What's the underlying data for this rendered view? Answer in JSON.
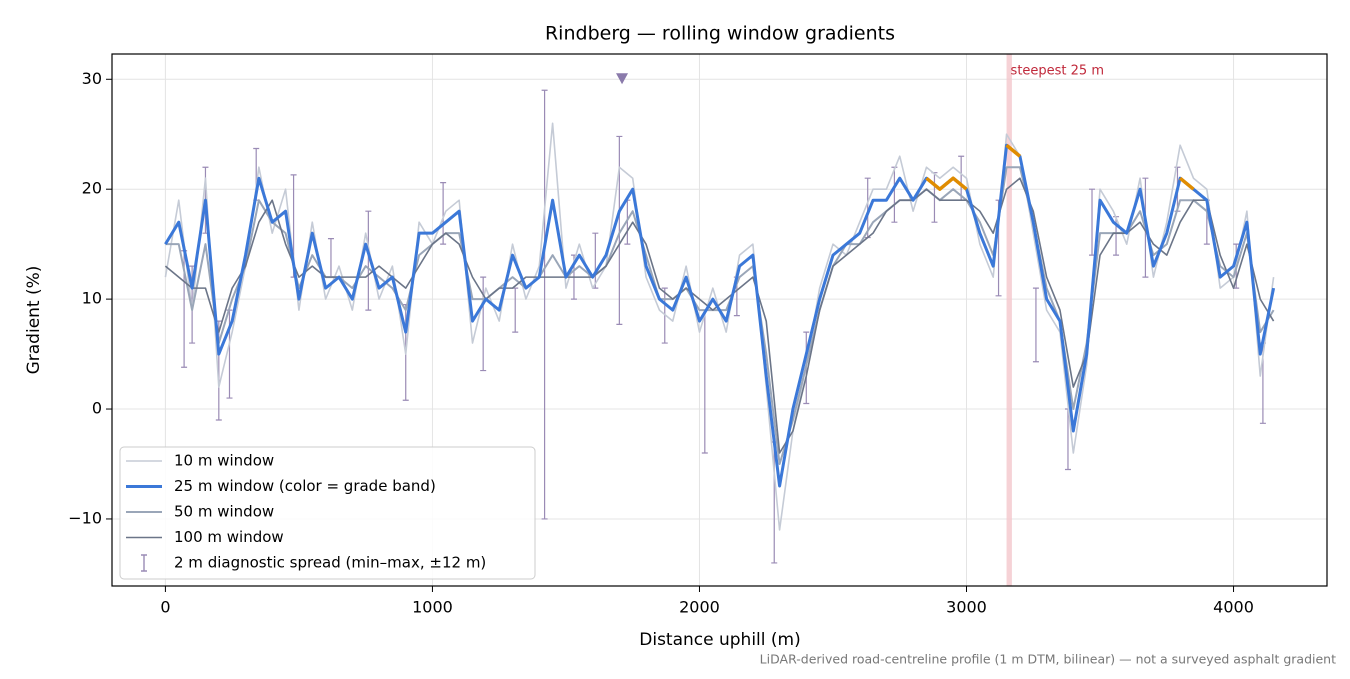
{
  "chart_data": {
    "type": "line",
    "title": "Rindberg — rolling window gradients",
    "x_label": "Distance uphill (m)",
    "y_label": "Gradient (%)",
    "footnote": "LiDAR-derived road-centreline profile (1 m DTM, bilinear) — not a surveyed asphalt gradient",
    "xlim": [
      -200,
      4350
    ],
    "ylim": [
      -16.1,
      32.3
    ],
    "xticks": [
      0,
      1000,
      2000,
      3000,
      4000
    ],
    "yticks": [
      {
        "value": -10,
        "label": "−10"
      },
      0,
      10,
      20,
      30
    ],
    "grid": true,
    "legend": "lower left",
    "x": [
      0,
      50,
      100,
      150,
      200,
      250,
      300,
      350,
      400,
      450,
      500,
      550,
      600,
      650,
      700,
      750,
      800,
      850,
      900,
      950,
      1000,
      1050,
      1100,
      1150,
      1200,
      1250,
      1300,
      1350,
      1400,
      1450,
      1500,
      1550,
      1600,
      1650,
      1700,
      1750,
      1800,
      1850,
      1900,
      1950,
      2000,
      2050,
      2100,
      2150,
      2200,
      2250,
      2300,
      2350,
      2400,
      2450,
      2500,
      2550,
      2600,
      2650,
      2700,
      2750,
      2800,
      2850,
      2900,
      2950,
      3000,
      3050,
      3100,
      3150,
      3200,
      3250,
      3300,
      3350,
      3400,
      3450,
      3500,
      3550,
      3600,
      3650,
      3700,
      3750,
      3800,
      3850,
      3900,
      3950,
      4000,
      4050,
      4100,
      4150
    ],
    "series": [
      {
        "name": "10 m window",
        "color": "#c5cbd6",
        "width": 1.6,
        "values": [
          12,
          19,
          9,
          21,
          2,
          7,
          13,
          22,
          16,
          20,
          9,
          17,
          10,
          13,
          9,
          16,
          10,
          13,
          5,
          17,
          15,
          18,
          19,
          6,
          11,
          8,
          15,
          10,
          13,
          26,
          11,
          15,
          11,
          13,
          22,
          21,
          12,
          9,
          8,
          13,
          7,
          11,
          7,
          14,
          15,
          2,
          -11,
          -2,
          4,
          11,
          15,
          14,
          17,
          20,
          20,
          23,
          18,
          22,
          21,
          22,
          21,
          15,
          12,
          25,
          23,
          16,
          9,
          7,
          -4,
          4,
          20,
          18,
          15,
          21,
          12,
          17,
          24,
          21,
          20,
          11,
          12,
          18,
          3,
          12
        ]
      },
      {
        "name": "25 m window (color = grade band)",
        "color": "#3b78d8",
        "width": 3,
        "highlight_above": 20,
        "highlight_color": "#e08c00",
        "values": [
          15,
          17,
          11,
          19,
          5,
          8,
          14,
          21,
          17,
          18,
          10,
          16,
          11,
          12,
          10,
          15,
          11,
          12,
          7,
          16,
          16,
          17,
          18,
          8,
          10,
          9,
          14,
          11,
          12,
          19,
          12,
          14,
          12,
          14,
          18,
          20,
          13,
          10,
          9,
          12,
          8,
          10,
          8,
          13,
          14,
          3,
          -7,
          0,
          5,
          10,
          14,
          15,
          16,
          19,
          19,
          21,
          19,
          21,
          20,
          21,
          20,
          16,
          13,
          24,
          23,
          17,
          10,
          8,
          -2,
          5,
          19,
          17,
          16,
          20,
          13,
          16,
          21,
          20,
          19,
          12,
          13,
          17,
          5,
          11
        ]
      },
      {
        "name": "50 m window",
        "color": "#9aa6b8",
        "width": 2,
        "values": [
          15,
          15,
          9,
          15,
          6,
          10,
          13,
          19,
          17,
          16,
          11,
          14,
          12,
          12,
          11,
          13,
          12,
          11,
          9,
          14,
          15,
          16,
          16,
          10,
          10,
          11,
          12,
          11,
          12,
          14,
          12,
          13,
          12,
          13,
          16,
          18,
          14,
          10,
          10,
          11,
          9,
          9,
          9,
          12,
          13,
          5,
          -5,
          -1,
          4,
          9,
          13,
          15,
          15,
          17,
          18,
          19,
          19,
          20,
          19,
          20,
          19,
          17,
          14,
          22,
          22,
          17,
          11,
          8,
          0,
          6,
          16,
          16,
          16,
          18,
          14,
          15,
          19,
          19,
          18,
          13,
          12,
          16,
          7,
          9
        ]
      },
      {
        "name": "100 m window",
        "color": "#6b7588",
        "width": 1.6,
        "values": [
          13,
          12,
          11,
          11,
          7,
          11,
          13,
          17,
          19,
          15,
          12,
          13,
          12,
          12,
          12,
          12,
          13,
          12,
          11,
          13,
          15,
          16,
          15,
          12,
          10,
          11,
          11,
          12,
          12,
          12,
          12,
          12,
          12,
          13,
          15,
          17,
          15,
          11,
          10,
          11,
          10,
          9,
          10,
          11,
          12,
          8,
          -4,
          -2,
          3,
          9,
          13,
          14,
          15,
          16,
          18,
          19,
          19,
          20,
          19,
          19,
          19,
          18,
          16,
          20,
          21,
          18,
          12,
          9,
          2,
          5,
          14,
          16,
          16,
          17,
          15,
          14,
          17,
          19,
          19,
          14,
          11,
          15,
          10,
          8
        ]
      }
    ],
    "error_bars": {
      "name": "2 m diagnostic spread (min–max, ±12 m)",
      "color": "#9a8bb5",
      "x": [
        70,
        100,
        150,
        200,
        240,
        340,
        480,
        620,
        760,
        900,
        1040,
        1190,
        1310,
        1420,
        1530,
        1610,
        1700,
        1730,
        1870,
        2020,
        2140,
        2280,
        2400,
        2630,
        2730,
        2880,
        2980,
        3120,
        3260,
        3380,
        3470,
        3560,
        3670,
        3790,
        3900,
        4010,
        4110
      ],
      "low": [
        3.8,
        6,
        16,
        -1,
        1,
        19,
        12,
        12,
        9,
        0.8,
        15,
        3.5,
        7,
        -10,
        10,
        11,
        7.7,
        15,
        6,
        -4,
        8.5,
        -14,
        0.5,
        15.6,
        17,
        17,
        19,
        10.3,
        4.3,
        -5.5,
        14,
        14,
        12,
        18,
        15,
        11,
        -1.3
      ],
      "high": [
        14.4,
        13,
        22,
        8,
        9,
        23.7,
        21.3,
        15.5,
        18,
        9.5,
        20.6,
        12,
        11,
        29,
        14,
        16,
        24.8,
        19,
        11,
        9,
        12,
        -3,
        7,
        21,
        22,
        21.5,
        23,
        19,
        11,
        0,
        20,
        17.5,
        21,
        22,
        19,
        15,
        6
      ]
    },
    "marker": {
      "x": 1710,
      "y": 30,
      "color": "#8a7aab"
    },
    "span": {
      "label": "steepest 25 m",
      "x": [
        3150,
        3170
      ],
      "color": "#f4c7cc",
      "text_color": "#c0283a"
    }
  }
}
